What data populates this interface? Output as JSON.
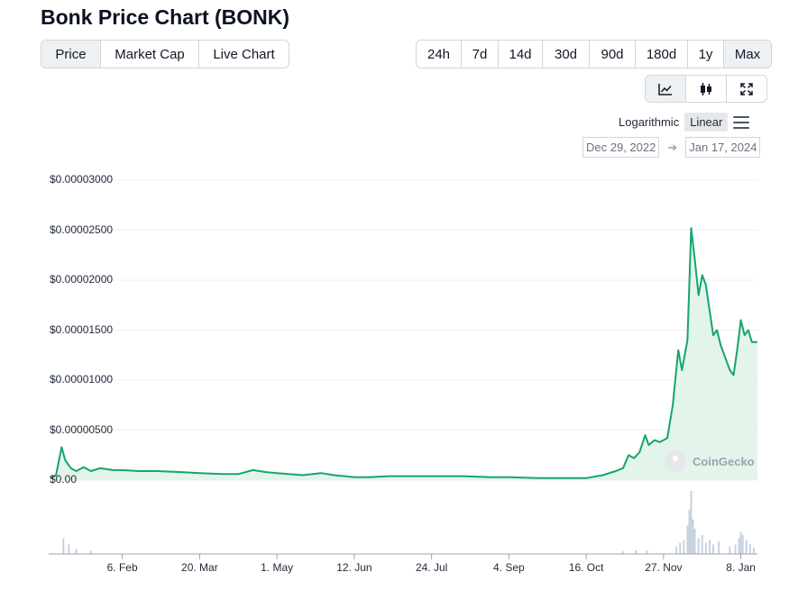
{
  "title": "Bonk Price Chart (BONK)",
  "tabs": [
    {
      "label": "Price",
      "active": true
    },
    {
      "label": "Market Cap",
      "active": false
    },
    {
      "label": "Live Chart",
      "active": false
    }
  ],
  "ranges": [
    {
      "label": "24h",
      "active": false
    },
    {
      "label": "7d",
      "active": false
    },
    {
      "label": "14d",
      "active": false
    },
    {
      "label": "30d",
      "active": false
    },
    {
      "label": "90d",
      "active": false
    },
    {
      "label": "180d",
      "active": false
    },
    {
      "label": "1y",
      "active": false
    },
    {
      "label": "Max",
      "active": true
    }
  ],
  "tools": [
    {
      "icon": "line-chart-icon",
      "active": true
    },
    {
      "icon": "candlestick-icon",
      "active": false
    },
    {
      "icon": "expand-icon",
      "active": false
    }
  ],
  "scale": {
    "logarithmic": "Logarithmic",
    "linear": "Linear",
    "selected": "Linear"
  },
  "date_range": {
    "from": "Dec 29, 2022",
    "to": "Jan 17, 2024"
  },
  "watermark": "CoinGecko",
  "colors": {
    "line": "#16a56b",
    "fill": "#dcf3e6",
    "volume": "#c7d2e0",
    "grid": "#eef0f3",
    "axis": "#9ca3af"
  },
  "chart_data": {
    "type": "area",
    "title": "",
    "xlabel": "",
    "ylabel": "",
    "ylim": [
      0,
      3e-05
    ],
    "y_ticks": [
      "$0.00",
      "$0.00000500",
      "$0.00001000",
      "$0.00001500",
      "$0.00002000",
      "$0.00002500",
      "$0.00003000"
    ],
    "y_tick_values": [
      0,
      5e-06,
      1e-05,
      1.5e-05,
      2e-05,
      2.5e-05,
      3e-05
    ],
    "xlim": [
      "2022-12-29",
      "2024-01-17"
    ],
    "x_ticks": [
      {
        "label": "6. Feb",
        "date": "2023-02-06"
      },
      {
        "label": "20. Mar",
        "date": "2023-03-20"
      },
      {
        "label": "1. May",
        "date": "2023-05-01"
      },
      {
        "label": "12. Jun",
        "date": "2023-06-12"
      },
      {
        "label": "24. Jul",
        "date": "2023-07-24"
      },
      {
        "label": "4. Sep",
        "date": "2023-09-04"
      },
      {
        "label": "16. Oct",
        "date": "2023-10-16"
      },
      {
        "label": "27. Nov",
        "date": "2023-11-27"
      },
      {
        "label": "8. Jan",
        "date": "2024-01-08"
      }
    ],
    "grid": true,
    "series": [
      {
        "values": [
          [
            "2022-12-29",
            2e-07
          ],
          [
            "2023-01-01",
            5e-07
          ],
          [
            "2023-01-04",
            3.3e-06
          ],
          [
            "2023-01-06",
            2e-06
          ],
          [
            "2023-01-09",
            1.2e-06
          ],
          [
            "2023-01-12",
            9e-07
          ],
          [
            "2023-01-16",
            1.3e-06
          ],
          [
            "2023-01-20",
            9e-07
          ],
          [
            "2023-01-25",
            1.2e-06
          ],
          [
            "2023-02-01",
            1e-06
          ],
          [
            "2023-02-06",
            1e-06
          ],
          [
            "2023-02-15",
            9e-07
          ],
          [
            "2023-02-25",
            9e-07
          ],
          [
            "2023-03-10",
            8e-07
          ],
          [
            "2023-03-20",
            7e-07
          ],
          [
            "2023-04-01",
            6e-07
          ],
          [
            "2023-04-10",
            6e-07
          ],
          [
            "2023-04-18",
            1e-06
          ],
          [
            "2023-04-25",
            8e-07
          ],
          [
            "2023-05-01",
            7e-07
          ],
          [
            "2023-05-15",
            5e-07
          ],
          [
            "2023-05-25",
            7e-07
          ],
          [
            "2023-06-01",
            5e-07
          ],
          [
            "2023-06-12",
            3e-07
          ],
          [
            "2023-06-20",
            3e-07
          ],
          [
            "2023-07-01",
            4e-07
          ],
          [
            "2023-07-24",
            4e-07
          ],
          [
            "2023-08-10",
            4e-07
          ],
          [
            "2023-08-25",
            3e-07
          ],
          [
            "2023-09-04",
            3e-07
          ],
          [
            "2023-09-20",
            2e-07
          ],
          [
            "2023-10-01",
            2e-07
          ],
          [
            "2023-10-16",
            2e-07
          ],
          [
            "2023-10-25",
            5e-07
          ],
          [
            "2023-11-01",
            9e-07
          ],
          [
            "2023-11-05",
            1.2e-06
          ],
          [
            "2023-11-08",
            2.5e-06
          ],
          [
            "2023-11-11",
            2.2e-06
          ],
          [
            "2023-11-14",
            2.8e-06
          ],
          [
            "2023-11-17",
            4.5e-06
          ],
          [
            "2023-11-19",
            3.5e-06
          ],
          [
            "2023-11-22",
            4e-06
          ],
          [
            "2023-11-25",
            3.8e-06
          ],
          [
            "2023-11-29",
            4.2e-06
          ],
          [
            "2023-12-02",
            7.5e-06
          ],
          [
            "2023-12-05",
            1.3e-05
          ],
          [
            "2023-12-07",
            1.1e-05
          ],
          [
            "2023-12-10",
            1.4e-05
          ],
          [
            "2023-12-12",
            2.52e-05
          ],
          [
            "2023-12-14",
            2.2e-05
          ],
          [
            "2023-12-16",
            1.85e-05
          ],
          [
            "2023-12-18",
            2.05e-05
          ],
          [
            "2023-12-20",
            1.95e-05
          ],
          [
            "2023-12-22",
            1.7e-05
          ],
          [
            "2023-12-24",
            1.45e-05
          ],
          [
            "2023-12-26",
            1.5e-05
          ],
          [
            "2023-12-28",
            1.35e-05
          ],
          [
            "2023-12-30",
            1.25e-05
          ],
          [
            "2024-01-02",
            1.1e-05
          ],
          [
            "2024-01-04",
            1.05e-05
          ],
          [
            "2024-01-06",
            1.3e-05
          ],
          [
            "2024-01-08",
            1.6e-05
          ],
          [
            "2024-01-10",
            1.45e-05
          ],
          [
            "2024-01-12",
            1.5e-05
          ],
          [
            "2024-01-14",
            1.38e-05
          ],
          [
            "2024-01-17",
            1.38e-05
          ]
        ]
      }
    ],
    "volume": [
      [
        "2023-01-05",
        0.25
      ],
      [
        "2023-01-08",
        0.15
      ],
      [
        "2023-01-12",
        0.08
      ],
      [
        "2023-01-20",
        0.05
      ],
      [
        "2023-11-05",
        0.04
      ],
      [
        "2023-11-12",
        0.06
      ],
      [
        "2023-11-18",
        0.06
      ],
      [
        "2023-12-04",
        0.12
      ],
      [
        "2023-12-06",
        0.18
      ],
      [
        "2023-12-08",
        0.22
      ],
      [
        "2023-12-10",
        0.45
      ],
      [
        "2023-12-11",
        0.7
      ],
      [
        "2023-12-12",
        1.0
      ],
      [
        "2023-12-13",
        0.55
      ],
      [
        "2023-12-14",
        0.4
      ],
      [
        "2023-12-16",
        0.25
      ],
      [
        "2023-12-18",
        0.3
      ],
      [
        "2023-12-20",
        0.18
      ],
      [
        "2023-12-22",
        0.22
      ],
      [
        "2023-12-24",
        0.15
      ],
      [
        "2023-12-27",
        0.2
      ],
      [
        "2024-01-02",
        0.12
      ],
      [
        "2024-01-05",
        0.15
      ],
      [
        "2024-01-07",
        0.25
      ],
      [
        "2024-01-08",
        0.35
      ],
      [
        "2024-01-09",
        0.3
      ],
      [
        "2024-01-11",
        0.22
      ],
      [
        "2024-01-13",
        0.15
      ],
      [
        "2024-01-15",
        0.1
      ]
    ]
  }
}
